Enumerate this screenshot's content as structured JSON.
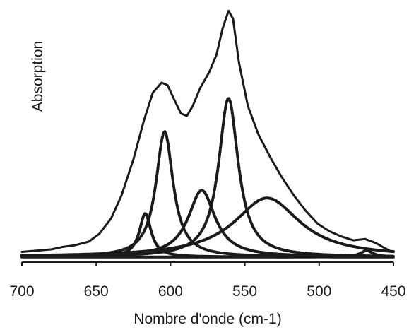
{
  "chart_data": {
    "type": "line",
    "title": "",
    "xlabel": "Nombre d'onde (cm-1)",
    "ylabel": "Absorption",
    "xlim": [
      700,
      450
    ],
    "x_reversed": true,
    "x_ticks": [
      "700",
      "650",
      "600",
      "550",
      "500",
      "450"
    ],
    "y_tick_labels_shown": false,
    "grid": false,
    "legend": "none",
    "baseline": 0.02,
    "series": [
      {
        "style": "solid",
        "stroke_width": 3,
        "points": [
          [
            700,
            0.04
          ],
          [
            690,
            0.045
          ],
          [
            680,
            0.05
          ],
          [
            672,
            0.06
          ],
          [
            665,
            0.065
          ],
          [
            655,
            0.08
          ],
          [
            648,
            0.11
          ],
          [
            640,
            0.17
          ],
          [
            633,
            0.26
          ],
          [
            625,
            0.4
          ],
          [
            618,
            0.55
          ],
          [
            612,
            0.66
          ],
          [
            606,
            0.7
          ],
          [
            602,
            0.69
          ],
          [
            598,
            0.64
          ],
          [
            593,
            0.58
          ],
          [
            589,
            0.57
          ],
          [
            585,
            0.61
          ],
          [
            580,
            0.68
          ],
          [
            574,
            0.74
          ],
          [
            569,
            0.81
          ],
          [
            565,
            0.91
          ],
          [
            561,
            0.98
          ],
          [
            558,
            0.95
          ],
          [
            554,
            0.78
          ],
          [
            548,
            0.61
          ],
          [
            541,
            0.5
          ],
          [
            533,
            0.41
          ],
          [
            525,
            0.33
          ],
          [
            517,
            0.26
          ],
          [
            509,
            0.2
          ],
          [
            501,
            0.15
          ],
          [
            493,
            0.12
          ],
          [
            485,
            0.1
          ],
          [
            477,
            0.085
          ],
          [
            469,
            0.09
          ],
          [
            462,
            0.075
          ],
          [
            456,
            0.055
          ],
          [
            451,
            0.04
          ]
        ]
      },
      {
        "style": "dashed",
        "center": 604,
        "height": 0.49,
        "hwhm": 7
      },
      {
        "style": "dashed",
        "center": 561,
        "height": 0.62,
        "hwhm": 8
      },
      {
        "style": "solid",
        "center": 617,
        "height": 0.17,
        "hwhm": 4.8
      },
      {
        "style": "solid",
        "center": 579,
        "height": 0.26,
        "hwhm": 11
      },
      {
        "style": "solid",
        "center": 535,
        "height": 0.23,
        "hwhm": 27
      },
      {
        "style": "solid",
        "center": 468,
        "height": 0.025,
        "hwhm": 5
      }
    ]
  }
}
